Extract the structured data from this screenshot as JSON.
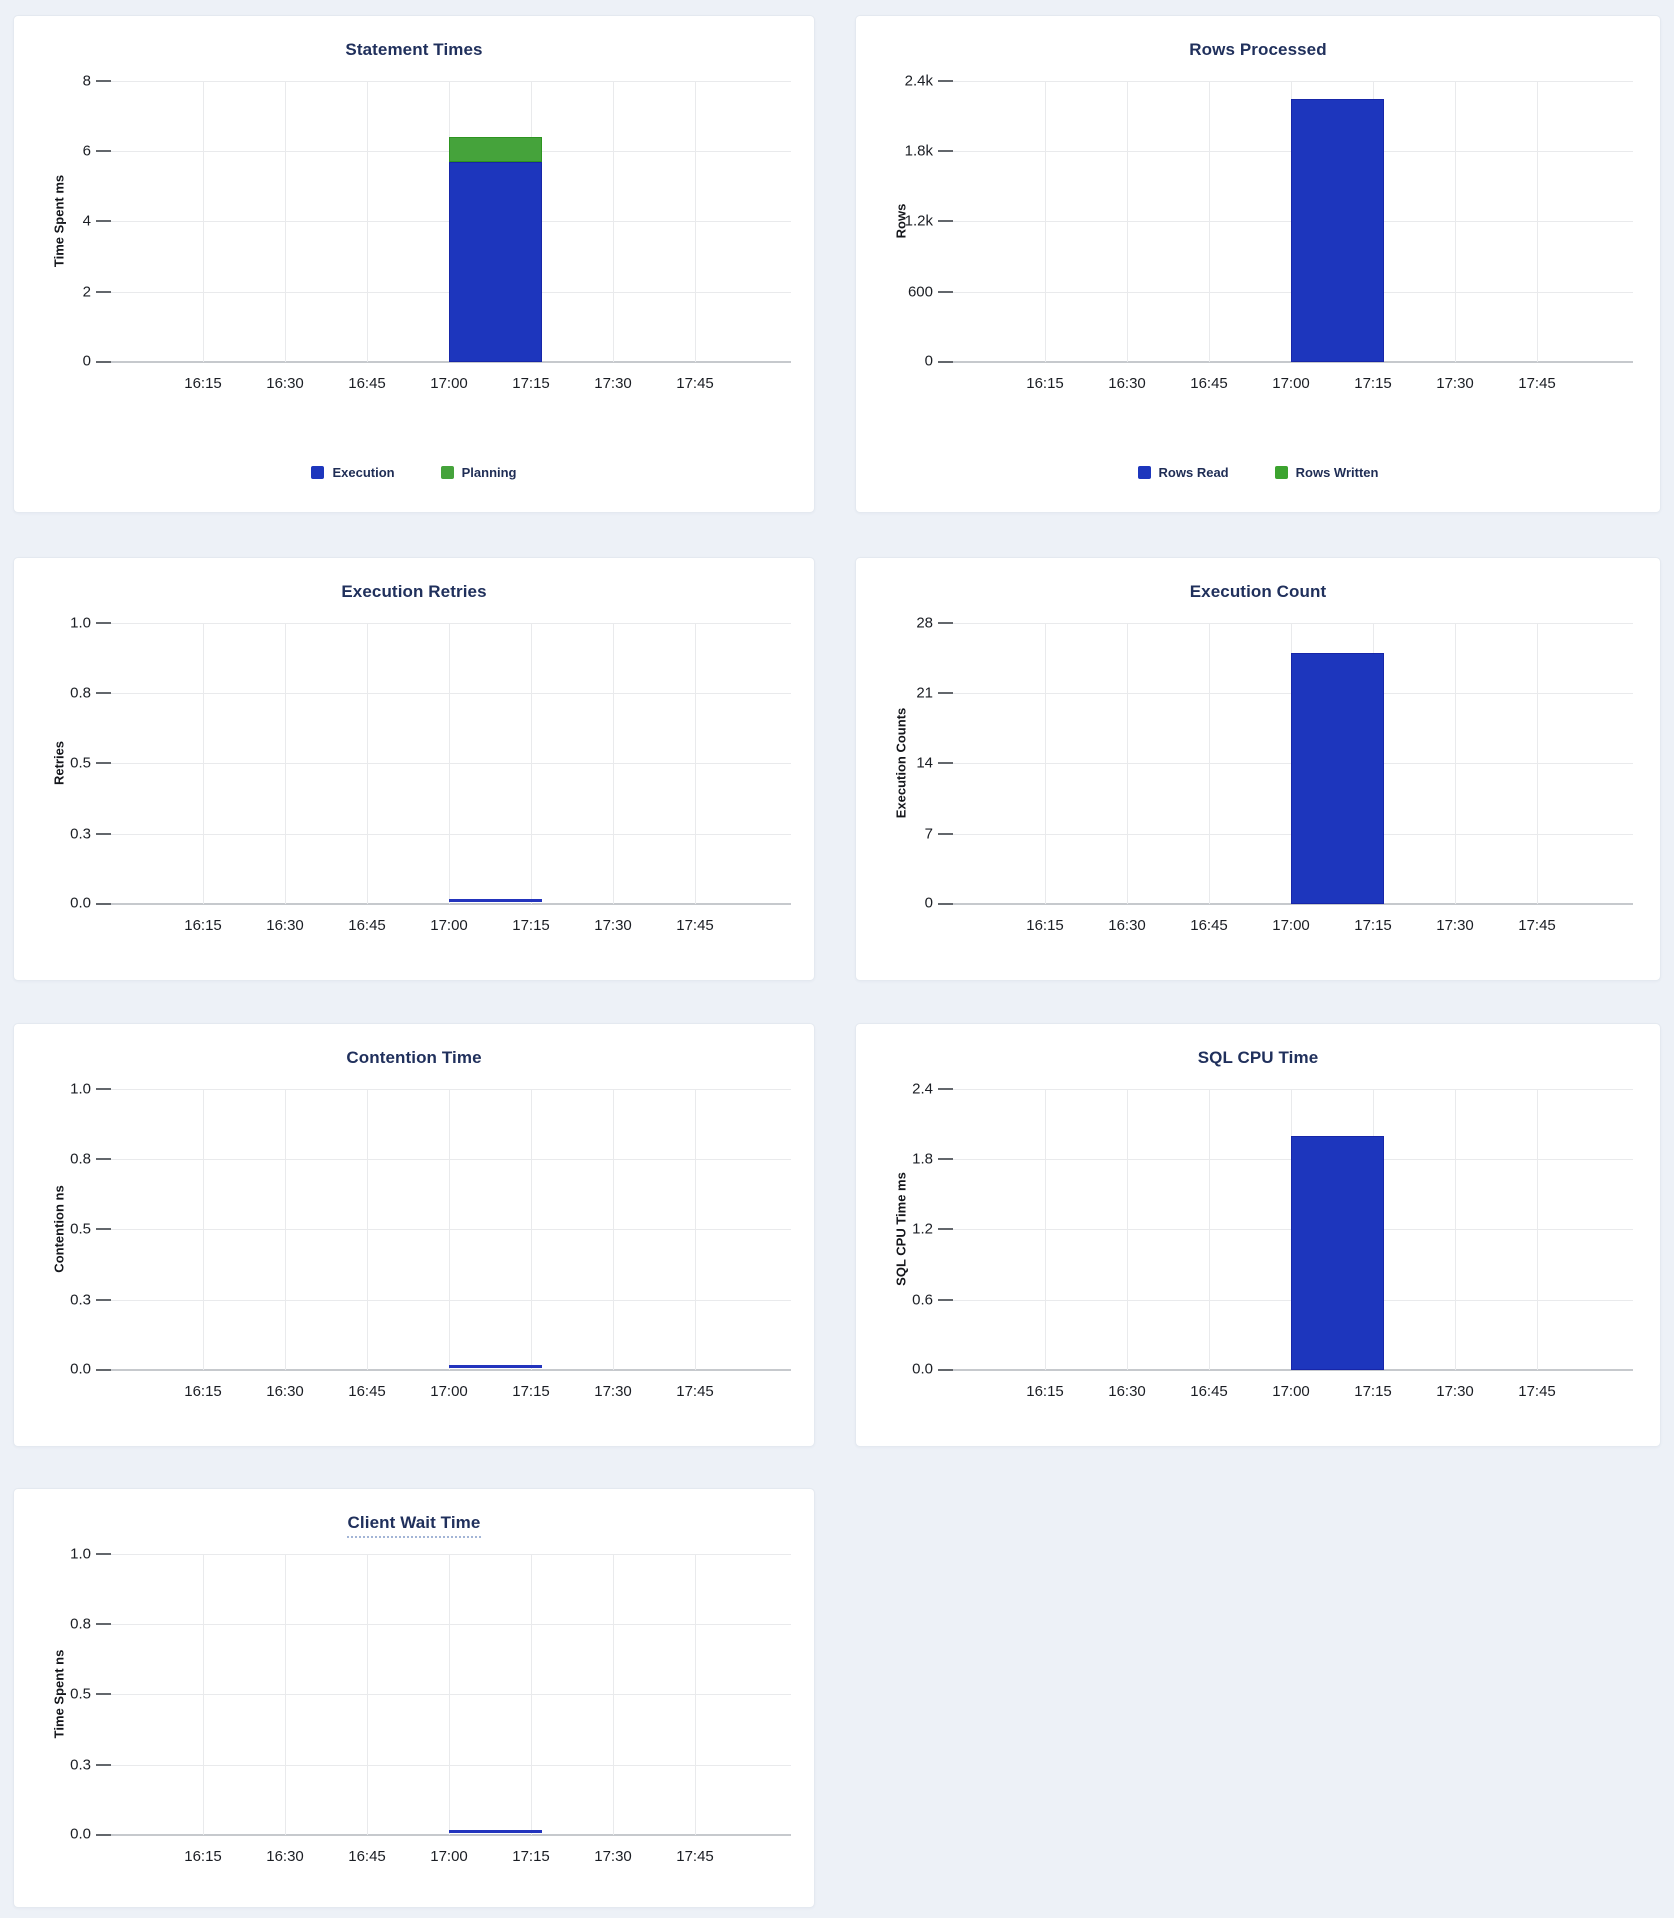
{
  "page": {
    "background_color": "#edf1f7",
    "card_color": "#ffffff",
    "title_color": "#20305c",
    "grid_color": "#e9eaec",
    "axis_color": "#c6c9cd"
  },
  "x_axis": {
    "labels": [
      "16:15",
      "16:30",
      "16:45",
      "17:00",
      "17:15",
      "17:30",
      "17:45"
    ]
  },
  "chart_data": [
    {
      "type": "bar",
      "stacked": true,
      "title": "Statement Times",
      "ylabel": "Time Spent ms",
      "ylim": [
        0,
        8
      ],
      "yticks": [
        "8",
        "6",
        "4",
        "2",
        "0"
      ],
      "x_ticks": [
        "16:15",
        "16:30",
        "16:45",
        "17:00",
        "17:15",
        "17:30",
        "17:45"
      ],
      "grid": true,
      "legend_position": "bottom",
      "series": [
        {
          "name": "Execution",
          "color": "#1d36bd",
          "border_color": "#1726a8",
          "values": [
            {
              "x_start": "17:00",
              "x_end": "17:17",
              "y": 5.7
            }
          ]
        },
        {
          "name": "Planning",
          "color": "#45a33b",
          "border_color": "#2d9420",
          "values": [
            {
              "x_start": "17:00",
              "x_end": "17:17",
              "y": 0.7
            }
          ]
        }
      ]
    },
    {
      "type": "bar",
      "stacked": true,
      "title": "Rows Processed",
      "ylabel": "Rows",
      "ylim": [
        0,
        2400
      ],
      "yticks": [
        "2.4k",
        "1.8k",
        "1.2k",
        "600",
        "0"
      ],
      "x_ticks": [
        "16:15",
        "16:30",
        "16:45",
        "17:00",
        "17:15",
        "17:30",
        "17:45"
      ],
      "grid": true,
      "legend_position": "bottom",
      "series": [
        {
          "name": "Rows Read",
          "color": "#1d36bd",
          "border_color": "#1726a8",
          "values": [
            {
              "x_start": "17:00",
              "x_end": "17:17",
              "y": 2250
            }
          ]
        },
        {
          "name": "Rows Written",
          "color": "#3ca32f",
          "border_color": "#2d9420",
          "values": [
            {
              "x_start": "17:00",
              "x_end": "17:17",
              "y": 0
            }
          ]
        }
      ]
    },
    {
      "type": "line",
      "title": "Execution Retries",
      "ylabel": "Retries",
      "ylim": [
        0,
        1
      ],
      "yticks": [
        "1.0",
        "0.8",
        "0.5",
        "0.3",
        "0.0"
      ],
      "x_ticks": [
        "16:15",
        "16:30",
        "16:45",
        "17:00",
        "17:15",
        "17:30",
        "17:45"
      ],
      "grid": true,
      "series": [
        {
          "name": "Retries",
          "color": "#2334bd",
          "values": [
            {
              "x_start": "17:00",
              "x_end": "17:17",
              "y": 0
            }
          ]
        }
      ]
    },
    {
      "type": "bar",
      "stacked": false,
      "title": "Execution Count",
      "ylabel": "Execution Counts",
      "ylim": [
        0,
        28
      ],
      "yticks": [
        "28",
        "21",
        "14",
        "7",
        "0"
      ],
      "x_ticks": [
        "16:15",
        "16:30",
        "16:45",
        "17:00",
        "17:15",
        "17:30",
        "17:45"
      ],
      "grid": true,
      "series": [
        {
          "name": "Execution Count",
          "color": "#1d36bd",
          "border_color": "#1726a8",
          "values": [
            {
              "x_start": "17:00",
              "x_end": "17:17",
              "y": 25
            }
          ]
        }
      ]
    },
    {
      "type": "line",
      "title": "Contention Time",
      "ylabel": "Contention ns",
      "ylim": [
        0,
        1
      ],
      "yticks": [
        "1.0",
        "0.8",
        "0.5",
        "0.3",
        "0.0"
      ],
      "x_ticks": [
        "16:15",
        "16:30",
        "16:45",
        "17:00",
        "17:15",
        "17:30",
        "17:45"
      ],
      "grid": true,
      "series": [
        {
          "name": "Contention",
          "color": "#2334bd",
          "values": [
            {
              "x_start": "17:00",
              "x_end": "17:17",
              "y": 0
            }
          ]
        }
      ]
    },
    {
      "type": "bar",
      "stacked": false,
      "title": "SQL CPU Time",
      "ylabel": "SQL CPU Time ms",
      "ylim": [
        0,
        2.4
      ],
      "yticks": [
        "2.4",
        "1.8",
        "1.2",
        "0.6",
        "0.0"
      ],
      "x_ticks": [
        "16:15",
        "16:30",
        "16:45",
        "17:00",
        "17:15",
        "17:30",
        "17:45"
      ],
      "grid": true,
      "series": [
        {
          "name": "SQL CPU Time",
          "color": "#1d36bd",
          "border_color": "#1726a8",
          "values": [
            {
              "x_start": "17:00",
              "x_end": "17:17",
              "y": 2.0
            }
          ]
        }
      ]
    },
    {
      "type": "line",
      "title": "Client Wait Time",
      "title_underlined": true,
      "ylabel": "Time Spent ns",
      "ylim": [
        0,
        1
      ],
      "yticks": [
        "1.0",
        "0.8",
        "0.5",
        "0.3",
        "0.0"
      ],
      "x_ticks": [
        "16:15",
        "16:30",
        "16:45",
        "17:00",
        "17:15",
        "17:30",
        "17:45"
      ],
      "grid": true,
      "series": [
        {
          "name": "Client Wait",
          "color": "#2334bd",
          "values": [
            {
              "x_start": "17:00",
              "x_end": "17:17",
              "y": 0
            }
          ]
        }
      ]
    }
  ]
}
